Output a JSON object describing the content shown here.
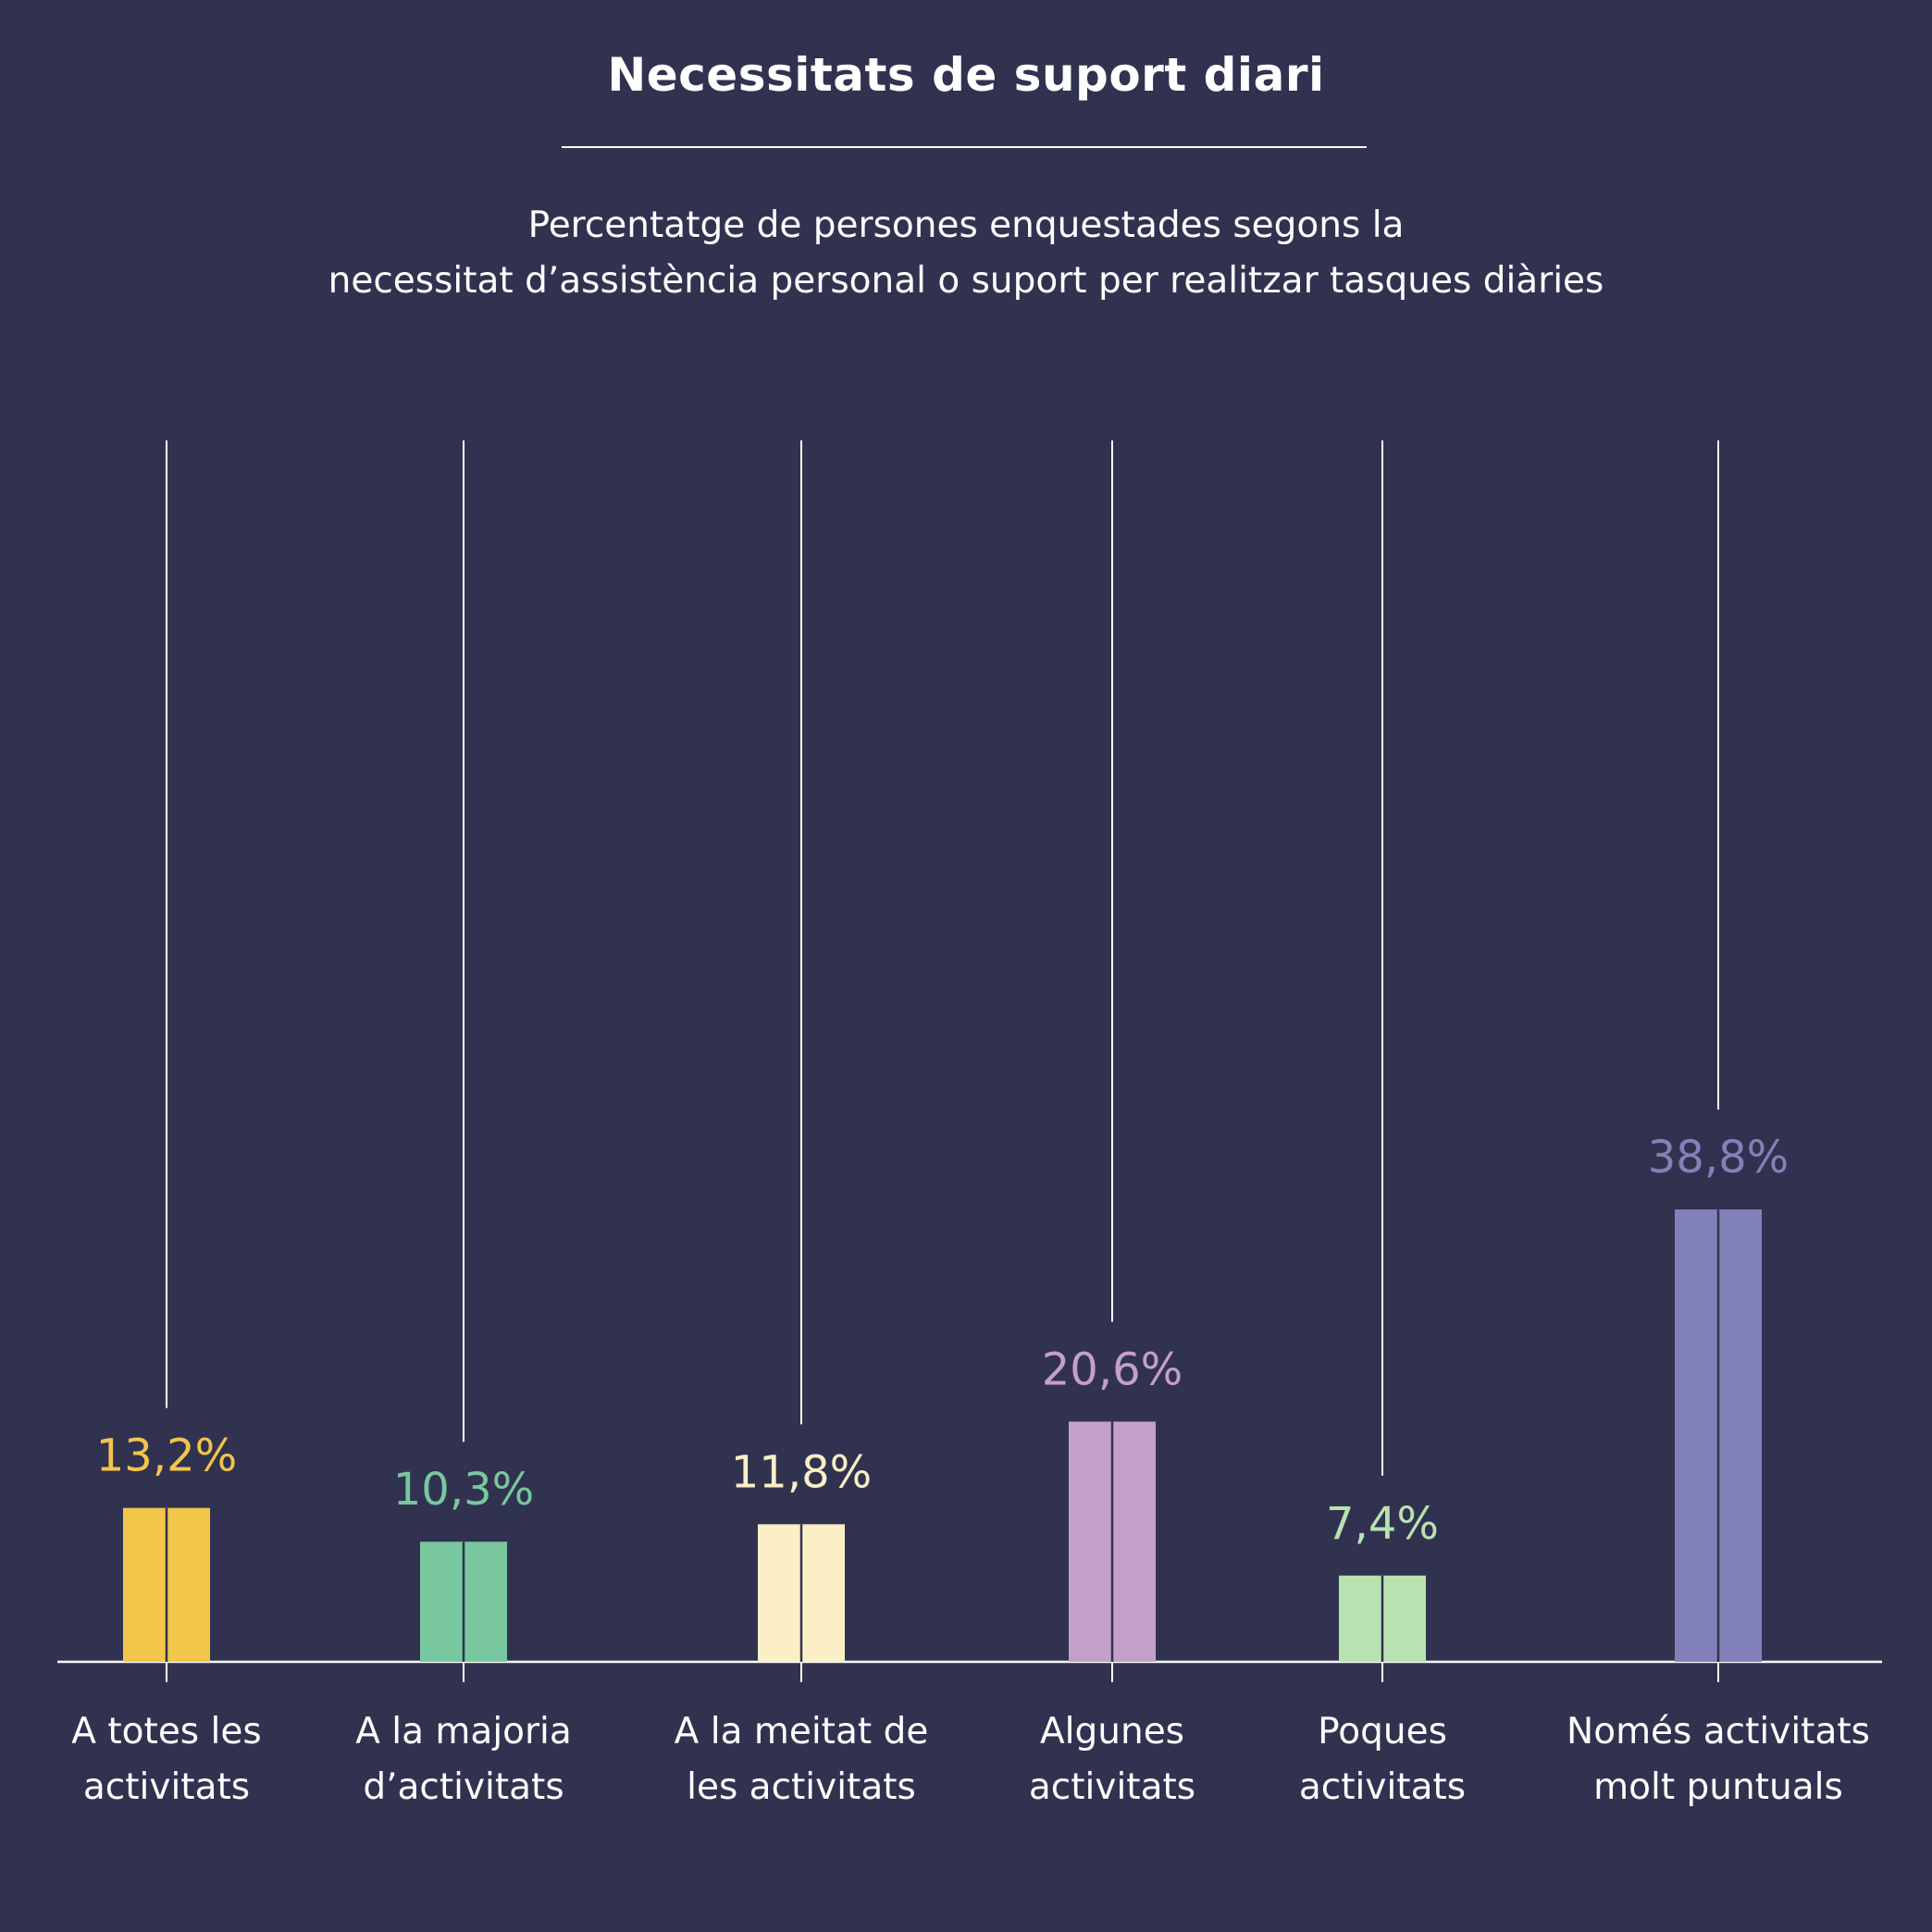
{
  "chart_data": {
    "type": "bar",
    "title": "Necessitats de suport diari",
    "subtitle_lines": [
      "Percentatge de persones enquestades segons la",
      "necessitat d’assistència personal o suport per realitzar tasques diàries"
    ],
    "categories": [
      [
        "A totes les",
        "activitats"
      ],
      [
        "A la majoria",
        "d’activitats"
      ],
      [
        "A la meitat de",
        "les activitats"
      ],
      [
        "Algunes",
        "activitats"
      ],
      [
        "Poques",
        "activitats"
      ],
      [
        "Només activitats",
        "molt puntuals"
      ]
    ],
    "values": [
      13.2,
      10.3,
      11.8,
      20.6,
      7.4,
      38.8
    ],
    "value_labels": [
      "13,2%",
      "10,3%",
      "11,8%",
      "20,6%",
      "7,4%",
      "38,8%"
    ],
    "colors": [
      "#F2C54B",
      "#78C79F",
      "#FAEFC6",
      "#C4A0C9",
      "#B8E3B0",
      "#8282B8"
    ],
    "ylim": [
      0,
      100
    ],
    "grid": false,
    "legend": "none"
  }
}
